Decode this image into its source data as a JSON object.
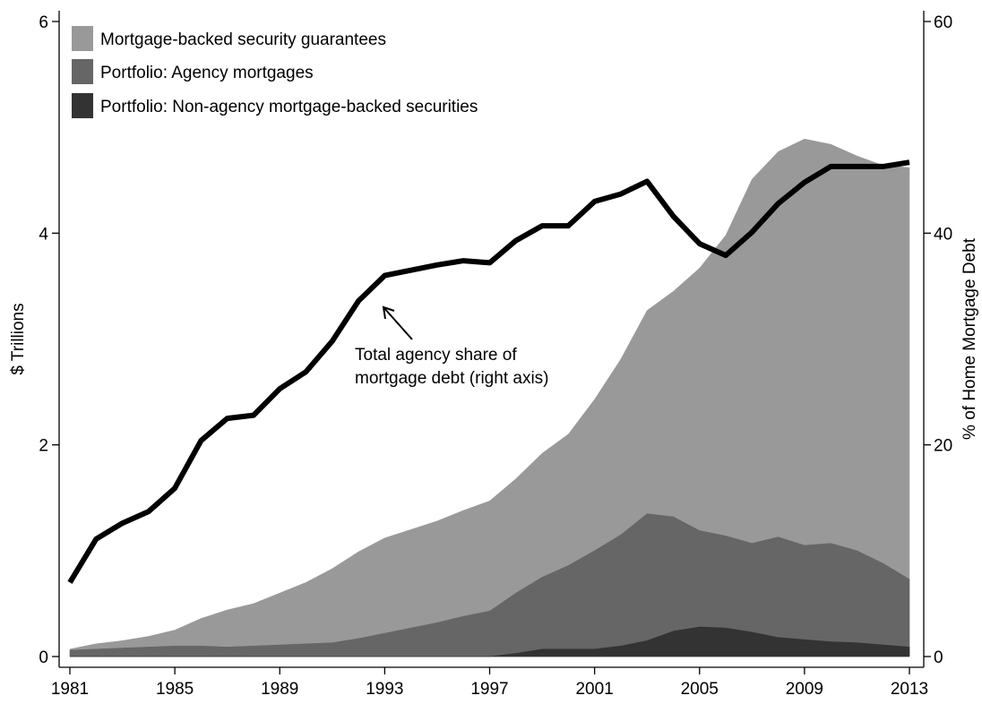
{
  "chart_data": {
    "type": "area",
    "x": [
      1981,
      1982,
      1983,
      1984,
      1985,
      1986,
      1987,
      1988,
      1989,
      1990,
      1991,
      1992,
      1993,
      1994,
      1995,
      1996,
      1997,
      1998,
      1999,
      2000,
      2001,
      2002,
      2003,
      2004,
      2005,
      2006,
      2007,
      2008,
      2009,
      2010,
      2011,
      2012,
      2013
    ],
    "x_ticks": [
      "1981",
      "1985",
      "1989",
      "1993",
      "1997",
      "2001",
      "2005",
      "2009",
      "2013"
    ],
    "xlim": [
      1981,
      2013
    ],
    "ylabel": "$ Trillions",
    "ylim": [
      0,
      6
    ],
    "y_ticks": [
      "0",
      "2",
      "4",
      "6"
    ],
    "y2label": "% of Home Mortgage Debt",
    "y2lim": [
      0,
      60
    ],
    "y2_ticks": [
      "0",
      "20",
      "40",
      "60"
    ],
    "grid": false,
    "legend_position": "top-left",
    "stacked": true,
    "series": [
      {
        "name": "Mortgage-backed security guarantees",
        "color": "#999999",
        "cumulative_values": [
          0.07,
          0.12,
          0.15,
          0.19,
          0.25,
          0.36,
          0.44,
          0.5,
          0.6,
          0.7,
          0.83,
          0.99,
          1.12,
          1.2,
          1.28,
          1.38,
          1.47,
          1.68,
          1.92,
          2.1,
          2.43,
          2.81,
          3.27,
          3.45,
          3.67,
          3.98,
          4.51,
          4.77,
          4.89,
          4.84,
          4.73,
          4.64,
          4.62
        ]
      },
      {
        "name": "Portfolio: Agency mortgages",
        "color": "#666666",
        "cumulative_values": [
          0.06,
          0.07,
          0.08,
          0.09,
          0.1,
          0.1,
          0.09,
          0.1,
          0.11,
          0.12,
          0.13,
          0.17,
          0.22,
          0.27,
          0.32,
          0.38,
          0.43,
          0.6,
          0.75,
          0.86,
          1.0,
          1.15,
          1.35,
          1.32,
          1.19,
          1.14,
          1.07,
          1.13,
          1.05,
          1.07,
          1.0,
          0.88,
          0.73
        ]
      },
      {
        "name": "Portfolio: Non-agency mortgage-backed securities",
        "color": "#333333",
        "cumulative_values": [
          0,
          0,
          0,
          0,
          0,
          0,
          0,
          0,
          0,
          0,
          0,
          0,
          0,
          0,
          0,
          0,
          0,
          0.03,
          0.07,
          0.07,
          0.07,
          0.1,
          0.15,
          0.24,
          0.28,
          0.27,
          0.23,
          0.18,
          0.16,
          0.14,
          0.13,
          0.11,
          0.09
        ]
      }
    ],
    "line": {
      "axis": "right",
      "color": "#000000",
      "values": [
        7.0,
        11.1,
        12.6,
        13.7,
        15.9,
        20.4,
        22.5,
        22.8,
        25.3,
        26.9,
        29.8,
        33.6,
        36.0,
        36.5,
        37.0,
        37.4,
        37.2,
        39.3,
        40.7,
        40.7,
        43.0,
        43.7,
        44.9,
        41.6,
        39.0,
        37.9,
        40.1,
        42.8,
        44.8,
        46.3,
        46.3,
        46.3,
        46.7
      ]
    },
    "annotation": {
      "lines": [
        "Total agency share of",
        "mortgage debt (right axis)"
      ]
    }
  }
}
